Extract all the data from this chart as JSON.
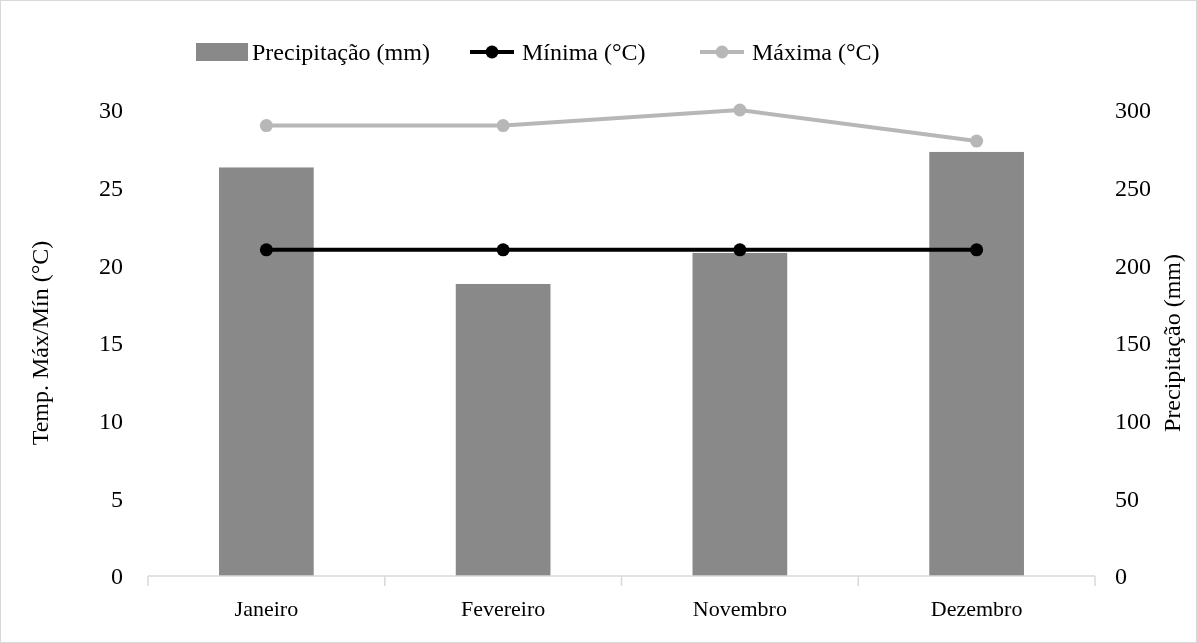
{
  "chart_data": {
    "type": "bar",
    "categories": [
      "Janeiro",
      "Fevereiro",
      "Novembro",
      "Dezembro"
    ],
    "ylabel": "Temp. Máx/Mín (°C)",
    "y2label": "Precipitação (mm)",
    "series": [
      {
        "name": "Precipitação (mm)",
        "axis": "y2",
        "color": "#898989",
        "values": [
          263,
          188,
          208,
          273
        ]
      },
      {
        "name": "Mínima (°C)",
        "type": "line",
        "color": "#000000",
        "marker": "circle",
        "values": [
          21,
          21,
          21,
          21
        ]
      },
      {
        "name": "Máxima (°C)",
        "type": "line",
        "color": "#b7b7b7",
        "marker": "circle",
        "values": [
          29,
          29,
          30,
          28
        ]
      }
    ],
    "ylim": [
      0,
      30
    ],
    "yticks": [
      0,
      5,
      10,
      15,
      20,
      25,
      30
    ],
    "y2lim": [
      0,
      300
    ],
    "y2ticks": [
      0,
      50,
      100,
      150,
      200,
      250,
      300
    ],
    "legend": "top",
    "grid": false
  }
}
